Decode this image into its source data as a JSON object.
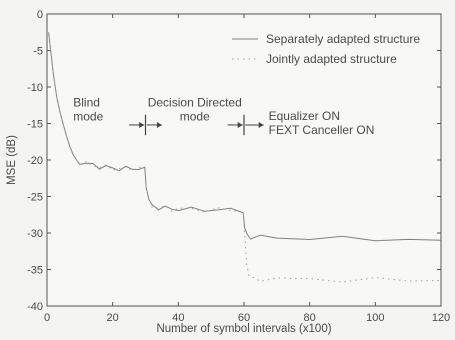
{
  "chart_data": {
    "type": "line",
    "title": "",
    "xlabel": "Number of symbol intervals (x100)",
    "ylabel": "MSE (dB)",
    "xlim": [
      0,
      120
    ],
    "ylim": [
      -40,
      0
    ],
    "xticks": [
      0,
      20,
      40,
      60,
      80,
      100,
      120
    ],
    "yticks": [
      0,
      -5,
      -10,
      -15,
      -20,
      -25,
      -30,
      -35,
      -40
    ],
    "xtick_labels": [
      "0",
      "20",
      "40",
      "60",
      "80",
      "100",
      "120"
    ],
    "ytick_labels": [
      "0",
      "-5",
      "-10",
      "-15",
      "-20",
      "-25",
      "-30",
      "-35",
      "-40"
    ],
    "grid": false,
    "legend_position": "top-right",
    "series": [
      {
        "name": "Separately adapted structure",
        "style": "solid",
        "color": "#808080",
        "x": [
          0.5,
          1,
          2,
          3,
          4,
          5,
          6,
          7,
          8,
          9,
          10,
          12,
          14,
          16,
          18,
          20,
          22,
          24,
          26,
          28,
          29.8,
          30.2,
          31,
          32,
          34,
          36,
          38,
          40,
          44,
          48,
          52,
          56,
          59.8,
          60.2,
          61,
          62,
          65,
          70,
          80,
          90,
          100,
          110,
          120
        ],
        "y": [
          -2.5,
          -4.5,
          -8.5,
          -11.5,
          -13.5,
          -15.2,
          -16.8,
          -18.2,
          -19.3,
          -20.0,
          -20.3,
          -20.5,
          -20.7,
          -20.9,
          -21.0,
          -21.1,
          -21.2,
          -21.2,
          -21.1,
          -21.2,
          -21.3,
          -23.5,
          -25.5,
          -26.3,
          -26.5,
          -26.6,
          -26.7,
          -26.7,
          -26.8,
          -26.8,
          -26.8,
          -26.9,
          -26.9,
          -29.5,
          -30.3,
          -30.5,
          -30.6,
          -30.6,
          -30.7,
          -30.8,
          -30.8,
          -30.9,
          -31.0
        ]
      },
      {
        "name": "Jointly adapted structure",
        "style": "dotted",
        "color": "#a0a0a0",
        "x": [
          0.5,
          1,
          2,
          3,
          4,
          5,
          6,
          7,
          8,
          9,
          10,
          12,
          14,
          16,
          18,
          20,
          22,
          24,
          26,
          28,
          29.8,
          30.2,
          31,
          32,
          34,
          36,
          38,
          40,
          44,
          48,
          52,
          56,
          59.8,
          60.2,
          60.8,
          61.5,
          62,
          65,
          70,
          80,
          90,
          100,
          110,
          120
        ],
        "y": [
          -2.5,
          -4.5,
          -8.5,
          -11.5,
          -13.5,
          -15.2,
          -16.8,
          -18.2,
          -19.3,
          -20.0,
          -20.3,
          -20.5,
          -20.7,
          -20.9,
          -21.0,
          -21.1,
          -21.2,
          -21.2,
          -21.1,
          -21.2,
          -21.3,
          -23.5,
          -25.5,
          -26.3,
          -26.5,
          -26.6,
          -26.7,
          -26.7,
          -26.8,
          -26.8,
          -26.8,
          -26.9,
          -26.9,
          -30.5,
          -34.0,
          -35.8,
          -36.2,
          -36.3,
          -36.3,
          -36.4,
          -36.4,
          -36.4,
          -36.5,
          -36.5
        ]
      }
    ],
    "annotations": [
      {
        "name": "blind-mode",
        "lines": [
          "Blind",
          "mode"
        ],
        "x": 8,
        "y": -12.7,
        "anchor": "start"
      },
      {
        "name": "decision-directed-mode",
        "lines": [
          "Decision Directed",
          "mode"
        ],
        "x": 45,
        "y": -12.7,
        "anchor": "middle"
      },
      {
        "name": "equalizer-fext-on",
        "lines": [
          "Equalizer ON",
          "FEXT Canceller ON"
        ],
        "x": 67.5,
        "y": -14.5,
        "anchor": "start"
      }
    ],
    "markers": {
      "vertical_dividers": [
        30,
        60
      ],
      "arrow_y": -15.2,
      "arrows": [
        {
          "from": 25,
          "to": 29.6
        },
        {
          "from": 30.4,
          "to": 35
        },
        {
          "from": 55,
          "to": 59.6
        },
        {
          "from": 60.4,
          "to": 66
        }
      ]
    }
  }
}
